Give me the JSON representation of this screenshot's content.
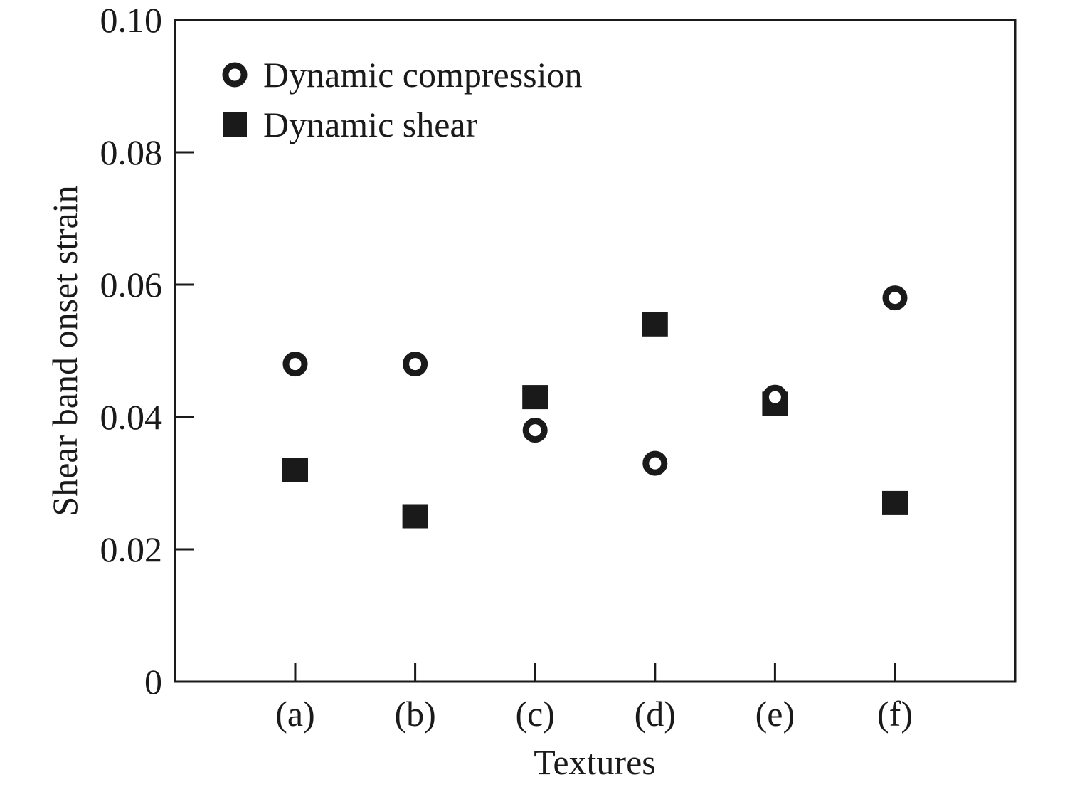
{
  "chart_data": {
    "type": "scatter",
    "categories": [
      "(a)",
      "(b)",
      "(c)",
      "(d)",
      "(e)",
      "(f)"
    ],
    "xlabel": "Textures",
    "ylabel": "Shear band onset strain",
    "ylim": [
      0,
      0.1
    ],
    "yticks": [
      "0",
      "0.02",
      "0.04",
      "0.06",
      "0.08",
      "0.10"
    ],
    "ytick_values": [
      0,
      0.02,
      0.04,
      0.06,
      0.08,
      0.1
    ],
    "grid": false,
    "legend_position": "top-left",
    "series": [
      {
        "name": "Dynamic compression",
        "marker": "open-circle",
        "color": "#1a1a1a",
        "values": [
          0.048,
          0.048,
          0.038,
          0.033,
          0.043,
          0.058
        ]
      },
      {
        "name": "Dynamic shear",
        "marker": "filled-square",
        "color": "#1a1a1a",
        "values": [
          0.032,
          0.025,
          0.043,
          0.054,
          0.042,
          0.027
        ]
      }
    ]
  }
}
